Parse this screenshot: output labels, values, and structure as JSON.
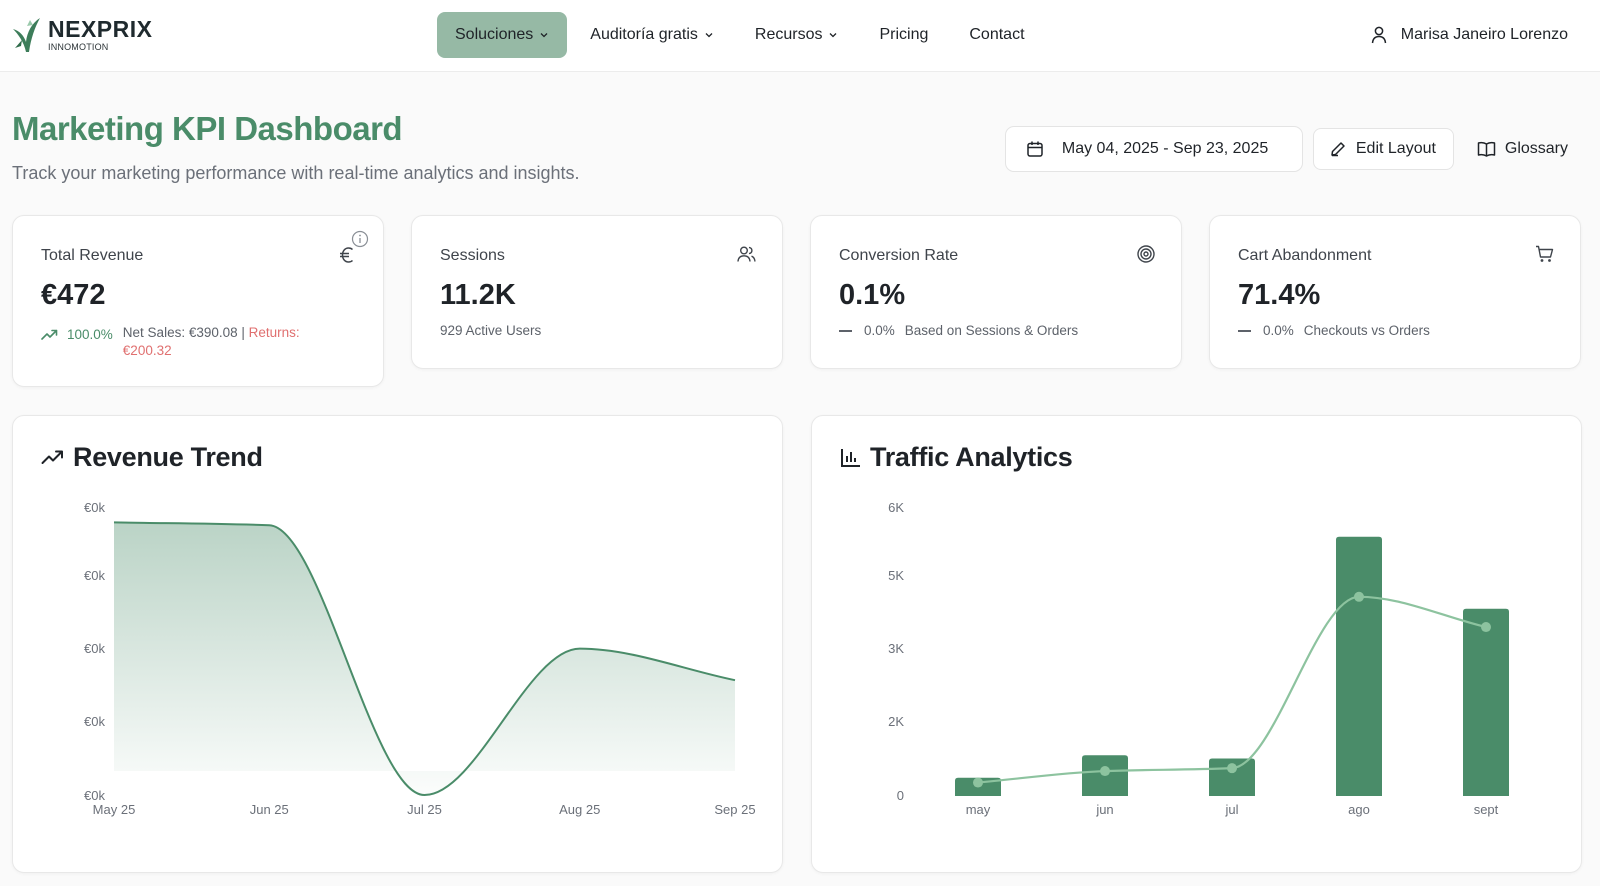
{
  "header": {
    "brand": "NEXPRIX",
    "brand_sub": "INNOMOTION",
    "nav": [
      {
        "label": "Soluciones",
        "dropdown": true,
        "active": true
      },
      {
        "label": "Auditoría gratis",
        "dropdown": true,
        "active": false
      },
      {
        "label": "Recursos",
        "dropdown": true,
        "active": false
      },
      {
        "label": "Pricing",
        "dropdown": false,
        "active": false
      },
      {
        "label": "Contact",
        "dropdown": false,
        "active": false
      }
    ],
    "user_name": "Marisa Janeiro Lorenzo"
  },
  "page": {
    "title": "Marketing KPI Dashboard",
    "subtitle": "Track your marketing performance with real-time analytics and insights."
  },
  "actions": {
    "date_range": "May 04, 2025 - Sep 23, 2025",
    "edit_label": "Edit Layout",
    "glossary_label": "Glossary"
  },
  "kpis": [
    {
      "label": "Total Revenue",
      "value": "€472",
      "icon": "euro-icon",
      "trend": "100.0%",
      "net_sales": "Net Sales: €390.08",
      "sep": " | ",
      "returns": "Returns: €200.32"
    },
    {
      "label": "Sessions",
      "value": "11.2K",
      "icon": "users-icon",
      "note": "929 Active Users"
    },
    {
      "label": "Conversion Rate",
      "value": "0.1%",
      "icon": "target-icon",
      "change": "0.0%",
      "note": "Based on Sessions & Orders"
    },
    {
      "label": "Cart Abandonment",
      "value": "71.4%",
      "icon": "cart-icon",
      "change": "0.0%",
      "note": "Checkouts vs Orders"
    }
  ],
  "colors": {
    "accent": "#4a8c69",
    "bar": "#4a8c69",
    "line": "#8dc39f",
    "returns": "#e07070"
  },
  "chart_data": [
    {
      "type": "area",
      "title": "Revenue Trend",
      "x": [
        "May 25",
        "Jun 25",
        "Jul 25",
        "Aug 25",
        "Sep 25"
      ],
      "y_tick_labels": [
        "€0k",
        "€0k",
        "€0k",
        "€0k",
        "€0k"
      ],
      "ylim": [
        0,
        1
      ],
      "series": [
        {
          "values": [
            0.95,
            0.94,
            0.0,
            0.51,
            0.4
          ]
        }
      ],
      "grid": false
    },
    {
      "type": "bar",
      "title": "Traffic Analytics",
      "categories": [
        "may",
        "jun",
        "jul",
        "ago",
        "sept"
      ],
      "y_tick_labels": [
        "0",
        "2K",
        "3K",
        "5K",
        "6K"
      ],
      "ylim": [
        0,
        6000
      ],
      "series": [
        {
          "kind": "bar",
          "values": [
            380,
            850,
            780,
            5400,
            3900
          ]
        },
        {
          "kind": "line",
          "values": [
            280,
            520,
            580,
            4150,
            3520
          ]
        }
      ],
      "grid": false
    }
  ]
}
